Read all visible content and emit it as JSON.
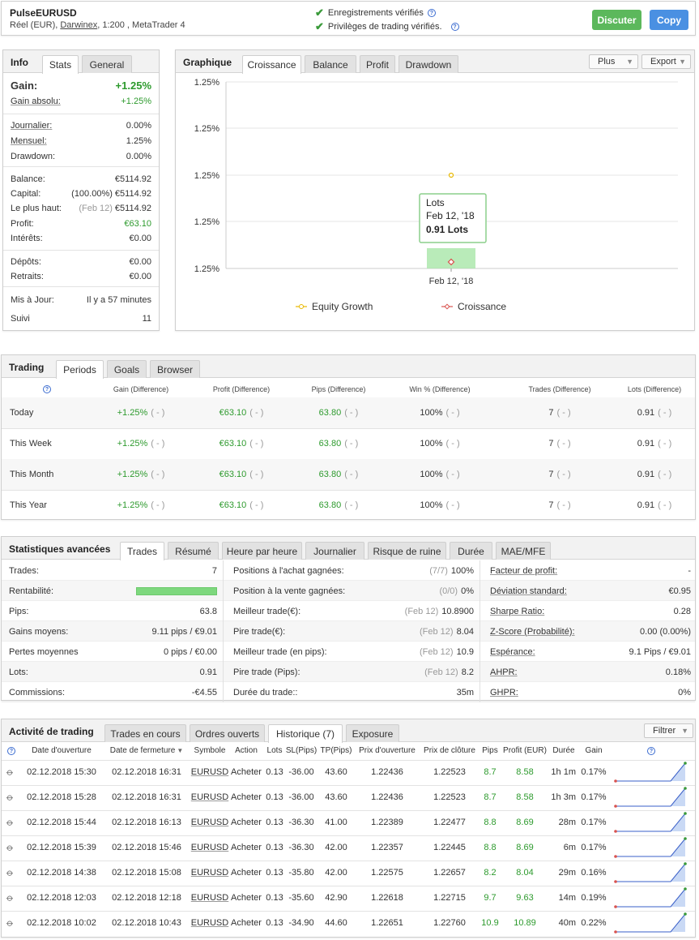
{
  "header": {
    "name": "PulseEURUSD",
    "type": "Réel (EUR),",
    "broker": "Darwinex",
    "rest": ", 1:200 , MetaTrader 4",
    "verified1": "Enregistrements vérifiés",
    "verified2": "Privilèges de trading vérifiés.",
    "discuss": "Discuter",
    "copy": "Copy"
  },
  "info": {
    "title": "Info",
    "tabs": [
      "Stats",
      "General"
    ],
    "gain_label": "Gain:",
    "gain": "+1.25%",
    "abs_label": "Gain absolu:",
    "abs": "+1.25%",
    "daily_label": "Journalier:",
    "daily": "0.00%",
    "monthly_label": "Mensuel:",
    "monthly": "1.25%",
    "dd_label": "Drawdown:",
    "dd": "0.00%",
    "balance_label": "Balance:",
    "balance": "€5114.92",
    "capital_label": "Capital:",
    "capital_pct": "(100.00%)",
    "capital": "€5114.92",
    "high_label": "Le plus haut:",
    "high_date": "(Feb 12)",
    "high": "€5114.92",
    "profit_label": "Profit:",
    "profit": "€63.10",
    "interest_label": "Intérêts:",
    "interest": "€0.00",
    "dep_label": "Dépôts:",
    "dep": "€0.00",
    "wd_label": "Retraits:",
    "wd": "€0.00",
    "upd_label": "Mis à Jour:",
    "upd": "Il y a 57 minutes",
    "follow_label": "Suivi",
    "follow": "11"
  },
  "chart": {
    "title": "Graphique",
    "tabs": [
      "Croissance",
      "Balance",
      "Profit",
      "Drawdown"
    ],
    "plus": "Plus",
    "export": "Export",
    "yticks": [
      "1.25%",
      "1.25%",
      "1.25%",
      "1.25%",
      "1.25%"
    ],
    "xlabel": "Feb 12, '18",
    "tooltip": {
      "title": "Lots",
      "date": "Feb 12, '18",
      "value": "0.91 Lots"
    },
    "legend": [
      "Equity Growth",
      "Croissance"
    ]
  },
  "chart_data": {
    "type": "line",
    "x": [
      "Feb 12, '18"
    ],
    "series": [
      {
        "name": "Equity Growth",
        "values": [
          1.25
        ],
        "color": "#e8b800"
      },
      {
        "name": "Croissance",
        "values": [
          1.25
        ],
        "color": "#d9534f"
      }
    ],
    "bar": {
      "name": "Lots",
      "values": [
        0.91
      ]
    },
    "legend": "bottom",
    "grid": true
  },
  "trading": {
    "title": "Trading",
    "tabs": [
      "Periods",
      "Goals",
      "Browser"
    ],
    "cols": [
      "Gain (Difference)",
      "Profit (Difference)",
      "Pips (Difference)",
      "Win % (Difference)",
      "Trades (Difference)",
      "Lots (Difference)"
    ],
    "rows": [
      {
        "label": "Today",
        "gain": "+1.25%",
        "profit": "€63.10",
        "pips": "63.80",
        "win": "100%",
        "trades": "7",
        "lots": "0.91",
        "diff": "( - )"
      },
      {
        "label": "This Week",
        "gain": "+1.25%",
        "profit": "€63.10",
        "pips": "63.80",
        "win": "100%",
        "trades": "7",
        "lots": "0.91",
        "diff": "( - )"
      },
      {
        "label": "This Month",
        "gain": "+1.25%",
        "profit": "€63.10",
        "pips": "63.80",
        "win": "100%",
        "trades": "7",
        "lots": "0.91",
        "diff": "( - )"
      },
      {
        "label": "This Year",
        "gain": "+1.25%",
        "profit": "€63.10",
        "pips": "63.80",
        "win": "100%",
        "trades": "7",
        "lots": "0.91",
        "diff": "( - )"
      }
    ]
  },
  "adv": {
    "title": "Statistiques avancées",
    "tabs": [
      "Trades",
      "Résumé",
      "Heure par heure",
      "Journalier",
      "Risque de ruine",
      "Durée",
      "MAE/MFE"
    ],
    "c1": [
      {
        "l": "Trades:",
        "v": "7"
      },
      {
        "l": "Rentabilité:",
        "v": ""
      },
      {
        "l": "Pips:",
        "v": "63.8"
      },
      {
        "l": "Gains moyens:",
        "v": "9.11 pips / €9.01"
      },
      {
        "l": "Pertes moyennes",
        "v": "0 pips / €0.00"
      },
      {
        "l": "Lots:",
        "v": "0.91"
      },
      {
        "l": "Commissions:",
        "v": "-€4.55"
      }
    ],
    "c2": [
      {
        "l": "Positions à l'achat gagnées:",
        "s": "(7/7)",
        "v": "100%"
      },
      {
        "l": "Position à la vente gagnées:",
        "s": "(0/0)",
        "v": "0%"
      },
      {
        "l": "Meilleur trade(€):",
        "s": "(Feb 12)",
        "v": "10.8900"
      },
      {
        "l": "Pire trade(€):",
        "s": "(Feb 12)",
        "v": "8.04"
      },
      {
        "l": "Meilleur trade (en pips):",
        "s": "(Feb 12)",
        "v": "10.9"
      },
      {
        "l": "Pire trade (Pips):",
        "s": "(Feb 12)",
        "v": "8.2"
      },
      {
        "l": "Durée du trade::",
        "s": "",
        "v": "35m"
      }
    ],
    "c3": [
      {
        "l": "Facteur de profit:",
        "v": "-"
      },
      {
        "l": "Déviation standard:",
        "v": "€0.95"
      },
      {
        "l": "Sharpe Ratio:",
        "v": "0.28"
      },
      {
        "l": "Z-Score (Probabilité):",
        "v": "0.00 (0.00%)"
      },
      {
        "l": "Espérance:",
        "v": "9.1 Pips / €9.01"
      },
      {
        "l": "AHPR:",
        "v": "0.18%"
      },
      {
        "l": "GHPR:",
        "v": "0%"
      }
    ],
    "profitability": 1.0
  },
  "activity": {
    "title": "Activité de trading",
    "tabs": [
      "Trades en cours",
      "Ordres ouverts",
      "Historique (7)",
      "Exposure"
    ],
    "filter": "Filtrer",
    "cols": [
      "Date d'ouverture",
      "Date de fermeture",
      "Symbole",
      "Action",
      "Lots",
      "SL(Pips)",
      "TP(Pips)",
      "Prix d'ouverture",
      "Prix de clôture",
      "Pips",
      "Profit (EUR)",
      "Durée",
      "Gain"
    ],
    "rows": [
      {
        "open": "02.12.2018 15:30",
        "close": "02.12.2018 16:31",
        "sym": "EURUSD",
        "act": "Acheter",
        "lots": "0.13",
        "sl": "-36.00",
        "tp": "43.60",
        "op": "1.22436",
        "cp": "1.22523",
        "pips": "8.7",
        "profit": "8.58",
        "dur": "1h 1m",
        "gain": "0.17%"
      },
      {
        "open": "02.12.2018 15:28",
        "close": "02.12.2018 16:31",
        "sym": "EURUSD",
        "act": "Acheter",
        "lots": "0.13",
        "sl": "-36.00",
        "tp": "43.60",
        "op": "1.22436",
        "cp": "1.22523",
        "pips": "8.7",
        "profit": "8.58",
        "dur": "1h 3m",
        "gain": "0.17%"
      },
      {
        "open": "02.12.2018 15:44",
        "close": "02.12.2018 16:13",
        "sym": "EURUSD",
        "act": "Acheter",
        "lots": "0.13",
        "sl": "-36.30",
        "tp": "41.00",
        "op": "1.22389",
        "cp": "1.22477",
        "pips": "8.8",
        "profit": "8.69",
        "dur": "28m",
        "gain": "0.17%"
      },
      {
        "open": "02.12.2018 15:39",
        "close": "02.12.2018 15:46",
        "sym": "EURUSD",
        "act": "Acheter",
        "lots": "0.13",
        "sl": "-36.30",
        "tp": "42.00",
        "op": "1.22357",
        "cp": "1.22445",
        "pips": "8.8",
        "profit": "8.69",
        "dur": "6m",
        "gain": "0.17%"
      },
      {
        "open": "02.12.2018 14:38",
        "close": "02.12.2018 15:08",
        "sym": "EURUSD",
        "act": "Acheter",
        "lots": "0.13",
        "sl": "-35.80",
        "tp": "42.00",
        "op": "1.22575",
        "cp": "1.22657",
        "pips": "8.2",
        "profit": "8.04",
        "dur": "29m",
        "gain": "0.16%"
      },
      {
        "open": "02.12.2018 12:03",
        "close": "02.12.2018 12:18",
        "sym": "EURUSD",
        "act": "Acheter",
        "lots": "0.13",
        "sl": "-35.60",
        "tp": "42.90",
        "op": "1.22618",
        "cp": "1.22715",
        "pips": "9.7",
        "profit": "9.63",
        "dur": "14m",
        "gain": "0.19%"
      },
      {
        "open": "02.12.2018 10:02",
        "close": "02.12.2018 10:43",
        "sym": "EURUSD",
        "act": "Acheter",
        "lots": "0.13",
        "sl": "-34.90",
        "tp": "44.60",
        "op": "1.22651",
        "cp": "1.22760",
        "pips": "10.9",
        "profit": "10.89",
        "dur": "40m",
        "gain": "0.22%"
      }
    ]
  }
}
